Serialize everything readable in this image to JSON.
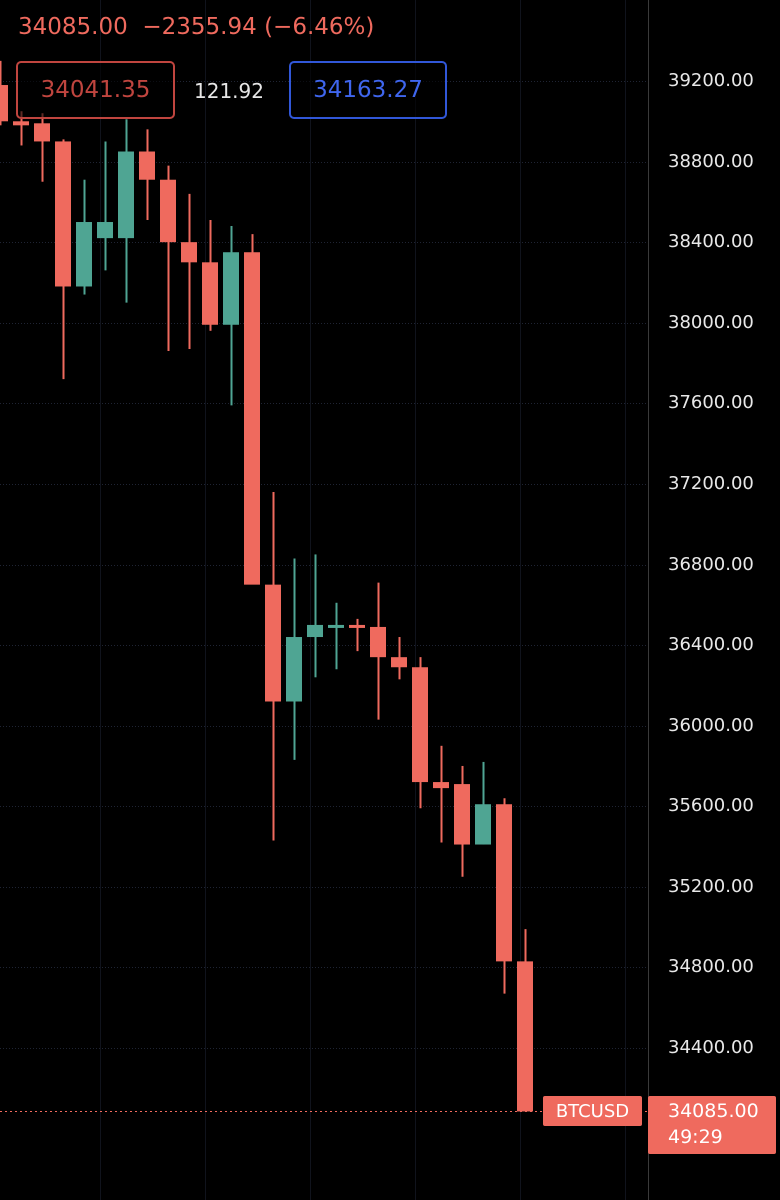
{
  "header": {
    "last_price": "34085.00",
    "change": "−2355.94",
    "change_pct": "(−6.46%)"
  },
  "quote": {
    "bid": "34041.35",
    "spread": "121.92",
    "ask": "34163.27"
  },
  "colors": {
    "up": "#4fa593",
    "down": "#ef6a5e",
    "background": "#000000",
    "grid": "#1f2433"
  },
  "price_tag": {
    "symbol": "BTCUSD",
    "price": "34085.00",
    "countdown": "49:29"
  },
  "chart_data": {
    "type": "candlestick",
    "ylim": [
      34000,
      39500
    ],
    "y_ticks": [
      "39200.00",
      "38800.00",
      "38400.00",
      "38000.00",
      "37600.00",
      "37200.00",
      "36800.00",
      "36400.00",
      "36000.00",
      "35600.00",
      "35200.00",
      "34800.00",
      "34400.00"
    ],
    "y_tick_values": [
      39200,
      38800,
      38400,
      38000,
      37600,
      37200,
      36800,
      36400,
      36000,
      35600,
      35200,
      34800,
      34400
    ],
    "grid": true,
    "last_price_value": 34085,
    "candles": [
      {
        "open": 39180,
        "high": 39300,
        "low": 38980,
        "close": 39000
      },
      {
        "open": 39000,
        "high": 39050,
        "low": 38880,
        "close": 38980
      },
      {
        "open": 38990,
        "high": 39040,
        "low": 38700,
        "close": 38900
      },
      {
        "open": 38900,
        "high": 38910,
        "low": 37720,
        "close": 38180
      },
      {
        "open": 38180,
        "high": 38710,
        "low": 38140,
        "close": 38500
      },
      {
        "open": 38420,
        "high": 38900,
        "low": 38260,
        "close": 38500
      },
      {
        "open": 38420,
        "high": 39010,
        "low": 38100,
        "close": 38850
      },
      {
        "open": 38850,
        "high": 38960,
        "low": 38510,
        "close": 38710
      },
      {
        "open": 38710,
        "high": 38780,
        "low": 37860,
        "close": 38400
      },
      {
        "open": 38400,
        "high": 38640,
        "low": 37870,
        "close": 38300
      },
      {
        "open": 38300,
        "high": 38510,
        "low": 37960,
        "close": 37990
      },
      {
        "open": 37990,
        "high": 38480,
        "low": 37590,
        "close": 38350
      },
      {
        "open": 38350,
        "high": 38440,
        "low": 36720,
        "close": 36700
      },
      {
        "open": 36700,
        "high": 37160,
        "low": 35430,
        "close": 36120
      },
      {
        "open": 36120,
        "high": 36830,
        "low": 35830,
        "close": 36440
      },
      {
        "open": 36440,
        "high": 36850,
        "low": 36240,
        "close": 36500
      },
      {
        "open": 36500,
        "high": 36610,
        "low": 36280,
        "close": 36500
      },
      {
        "open": 36500,
        "high": 36530,
        "low": 36370,
        "close": 36490
      },
      {
        "open": 36490,
        "high": 36710,
        "low": 36030,
        "close": 36340
      },
      {
        "open": 36340,
        "high": 36440,
        "low": 36230,
        "close": 36290
      },
      {
        "open": 36290,
        "high": 36340,
        "low": 35590,
        "close": 35720
      },
      {
        "open": 35720,
        "high": 35900,
        "low": 35420,
        "close": 35690
      },
      {
        "open": 35710,
        "high": 35800,
        "low": 35250,
        "close": 35410
      },
      {
        "open": 35410,
        "high": 35820,
        "low": 35410,
        "close": 35610
      },
      {
        "open": 35610,
        "high": 35640,
        "low": 34670,
        "close": 34830
      },
      {
        "open": 34830,
        "high": 34990,
        "low": 34100,
        "close": 34085
      }
    ]
  }
}
